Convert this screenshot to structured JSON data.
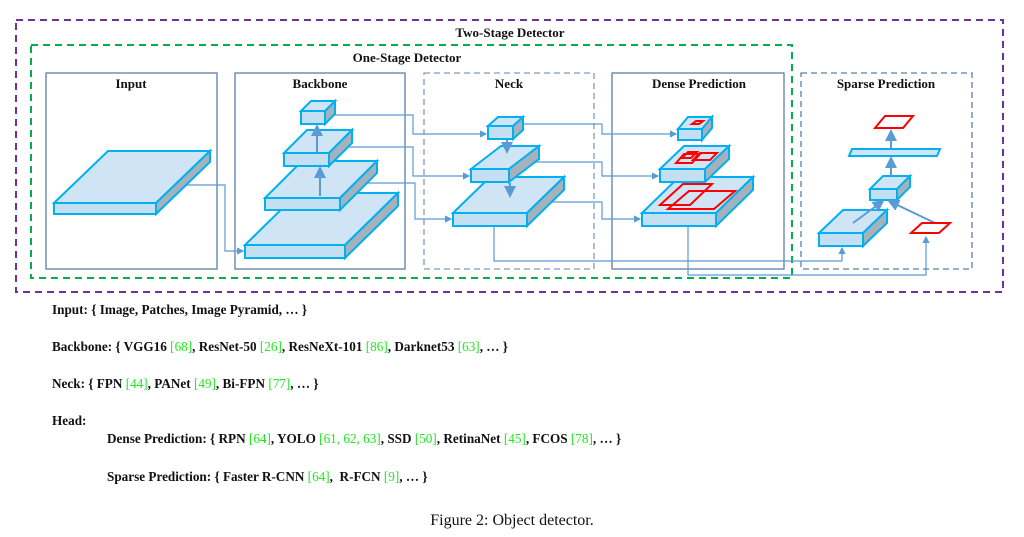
{
  "diagram": {
    "two_stage_label": "Two-Stage Detector",
    "one_stage_label": "One-Stage Detector",
    "panels": {
      "input": "Input",
      "backbone": "Backbone",
      "neck": "Neck",
      "dense": "Dense Prediction",
      "sparse": "Sparse Prediction"
    },
    "colors": {
      "two_stage_border": "#7030a0",
      "one_stage_border": "#00b050",
      "panel_border": "#5b7fa6",
      "layer_stroke": "#00b0f0",
      "layer_fill": "#cfe4f4",
      "layer_side": "#a5b2bc",
      "connector": "#5b9bd5",
      "box_red": "#ff0000",
      "citation": "#22e622"
    }
  },
  "lists": [
    {
      "segments": [
        {
          "text": "Input: { Image, Patches, Image Pyramid, … }"
        }
      ]
    },
    {
      "segments": [
        {
          "text": "Backbone: { VGG16 "
        },
        {
          "text": "[68]",
          "cite": true
        },
        {
          "text": ", ResNet-50 "
        },
        {
          "text": "[26]",
          "cite": true
        },
        {
          "text": ", ResNeXt-101 "
        },
        {
          "text": "[86]",
          "cite": true
        },
        {
          "text": ", Darknet53 "
        },
        {
          "text": "[63]",
          "cite": true
        },
        {
          "text": ", … }"
        }
      ]
    },
    {
      "segments": [
        {
          "text": "Neck: { FPN "
        },
        {
          "text": "[44]",
          "cite": true
        },
        {
          "text": ", PANet "
        },
        {
          "text": "[49]",
          "cite": true
        },
        {
          "text": ", Bi-FPN "
        },
        {
          "text": "[77]",
          "cite": true
        },
        {
          "text": ", … }"
        }
      ]
    },
    {
      "segments": [
        {
          "text": "Head:"
        }
      ]
    },
    {
      "segments": [
        {
          "text": "Dense Prediction: { RPN "
        },
        {
          "text": "[64]",
          "cite": true
        },
        {
          "text": ", YOLO "
        },
        {
          "text": "[61, 62, 63]",
          "cite": true
        },
        {
          "text": ", SSD "
        },
        {
          "text": "[50]",
          "cite": true
        },
        {
          "text": ", RetinaNet "
        },
        {
          "text": "[45]",
          "cite": true
        },
        {
          "text": ", FCOS "
        },
        {
          "text": "[78]",
          "cite": true
        },
        {
          "text": ", … }"
        }
      ]
    },
    {
      "segments": [
        {
          "text": "Sparse Prediction: { Faster R-CNN "
        },
        {
          "text": "[64]",
          "cite": true
        },
        {
          "text": ",  R-FCN "
        },
        {
          "text": "[9]",
          "cite": true
        },
        {
          "text": ", … }"
        }
      ]
    }
  ],
  "caption": "Figure 2: Object detector."
}
